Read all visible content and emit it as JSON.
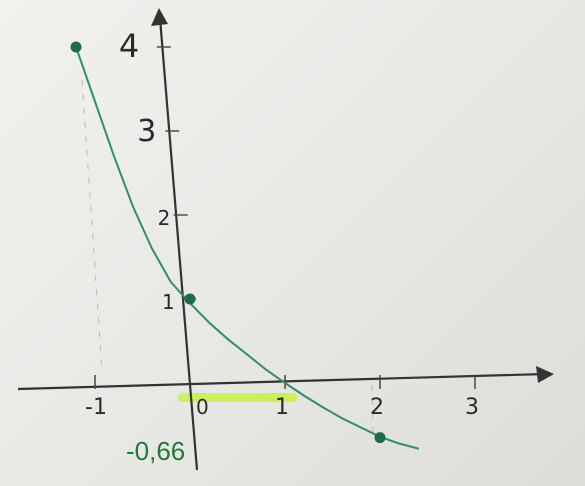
{
  "chart_data": {
    "type": "line",
    "title": "",
    "xlabel": "",
    "ylabel": "",
    "xlim": [
      -1.25,
      3.35
    ],
    "ylim": [
      -0.95,
      4.45
    ],
    "x_ticks": [
      "-1",
      "0",
      "1",
      "2",
      "3"
    ],
    "y_ticks": [
      "1",
      "2",
      "3",
      "4"
    ],
    "curve_x": [
      -1.2,
      -1.0,
      -0.8,
      -0.6,
      -0.4,
      -0.2,
      0.0,
      0.2,
      0.4,
      0.6,
      0.8,
      1.0,
      1.2,
      1.4,
      1.6,
      1.8,
      2.0,
      2.2,
      2.4
    ],
    "curve_y": [
      4.0,
      3.35,
      2.7,
      2.1,
      1.6,
      1.2,
      0.95,
      0.72,
      0.52,
      0.34,
      0.16,
      0.0,
      -0.15,
      -0.29,
      -0.42,
      -0.53,
      -0.64,
      -0.72,
      -0.78
    ],
    "points": [
      {
        "x": -1.2,
        "y": 4.0
      },
      {
        "x": 0.0,
        "y": 1.0
      },
      {
        "x": 2.0,
        "y": -0.65
      }
    ],
    "highlight_segment": {
      "x_from": 0.0,
      "x_to": 1.0
    },
    "annotation": {
      "text": "-0,66",
      "x": -0.2,
      "y": -0.75
    },
    "colors": {
      "curve": "#2f8f66",
      "points": "#1d6b4a",
      "highlight": "#c9f04a",
      "annotation": "#1f7a3a",
      "axes": "#333333"
    },
    "grid": false,
    "legend": "none"
  }
}
